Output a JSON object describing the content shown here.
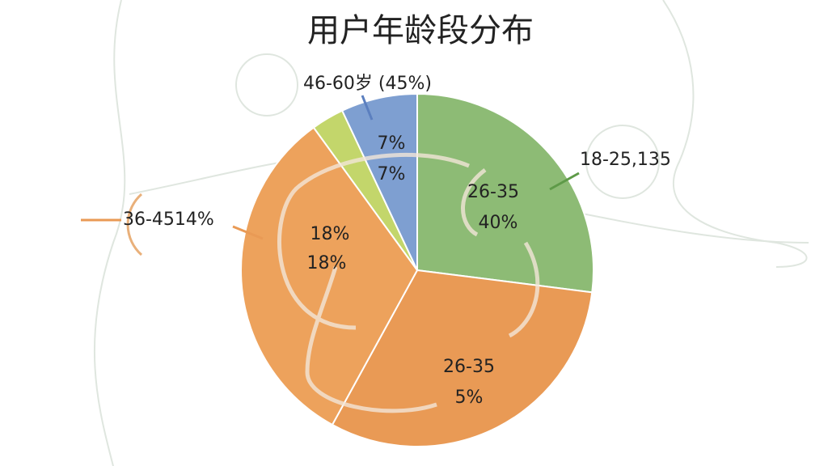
{
  "chart_data": {
    "type": "pie",
    "title": "用户年龄段分布",
    "values": [
      27,
      31,
      32,
      3,
      7
    ],
    "colors": [
      "#8dbb75",
      "#e99a55",
      "#eda25c",
      "#c3d66b",
      "#7e9fd1"
    ],
    "annotations": [
      "46-60岁 (45%)",
      "18-25,135",
      "36-4514%",
      "7%",
      "7%",
      "26-35",
      "40%",
      "18%",
      "18%",
      "26-35",
      "5%"
    ]
  }
}
